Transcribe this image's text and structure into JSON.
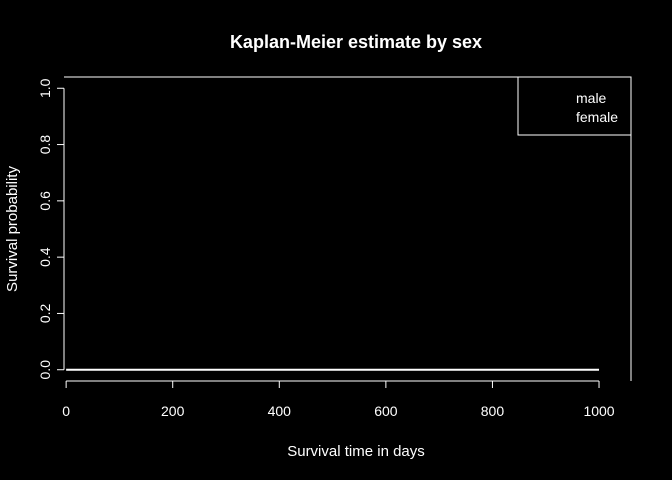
{
  "chart_data": {
    "type": "line",
    "title": "Kaplan-Meier estimate by sex",
    "xlabel": "Survival time in days",
    "ylabel": "Survival probability",
    "xlim": [
      -4,
      1060
    ],
    "ylim": [
      -0.04,
      1.04
    ],
    "xticks": [
      0,
      200,
      400,
      600,
      800,
      1000
    ],
    "xtick_labels": [
      "0",
      "200",
      "400",
      "600",
      "800",
      "1000"
    ],
    "yticks": [
      0.0,
      0.2,
      0.4,
      0.6,
      0.8,
      1.0
    ],
    "ytick_labels": [
      "0.0",
      "0.2",
      "0.4",
      "0.6",
      "0.8",
      "1.0"
    ],
    "legend": {
      "placement": "top-right",
      "entries": [
        "male",
        "female"
      ]
    },
    "series": [
      {
        "name": "male",
        "x": [],
        "y": [],
        "color": "#000000"
      },
      {
        "name": "female",
        "x": [],
        "y": [],
        "color": "#000000"
      }
    ],
    "grid": false,
    "background": "#000000",
    "foreground": "#ffffff"
  }
}
